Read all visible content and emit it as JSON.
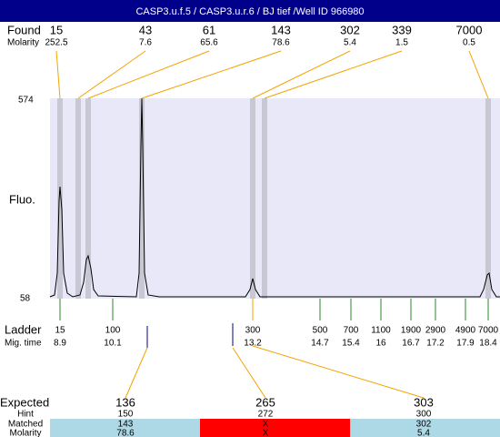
{
  "header": {
    "title": "CASP3.u.f.5 / CASP3.u.r.6 / BJ tief /Well ID 966980"
  },
  "found": {
    "label": "Found",
    "molarity_label": "Molarity",
    "peaks": [
      {
        "size": "15",
        "molarity": "252.5"
      },
      {
        "size": "43",
        "molarity": "7.6"
      },
      {
        "size": "61",
        "molarity": "65.6"
      },
      {
        "size": "143",
        "molarity": "78.6"
      },
      {
        "size": "302",
        "molarity": "5.4"
      },
      {
        "size": "339",
        "molarity": "1.5"
      },
      {
        "size": "7000",
        "molarity": "0.5"
      }
    ]
  },
  "axis": {
    "label": "Fluo.",
    "top": "574",
    "bottom": "58"
  },
  "ladder": {
    "label": "Ladder",
    "time_label": "Mig. time",
    "bands": [
      {
        "size": "15",
        "time": "8.9"
      },
      {
        "size": "100",
        "time": "10.1"
      },
      {
        "size": "300",
        "time": "13.2"
      },
      {
        "size": "500",
        "time": "14.7"
      },
      {
        "size": "700",
        "time": "15.4"
      },
      {
        "size": "1100",
        "time": "16"
      },
      {
        "size": "1900",
        "time": "16.7"
      },
      {
        "size": "2900",
        "time": "17.2"
      },
      {
        "size": "4900",
        "time": "17.9"
      },
      {
        "size": "7000",
        "time": "18.4"
      }
    ]
  },
  "expected": {
    "label": "Expected",
    "hint_label": "Hint",
    "matched_label": "Matched",
    "molarity_label": "Molarity",
    "columns": [
      {
        "expected": "136",
        "hint": "150",
        "matched": "143",
        "molarity": "78.6"
      },
      {
        "expected": "265",
        "hint": "272",
        "matched": "X",
        "molarity": "X"
      },
      {
        "expected": "303",
        "hint": "300",
        "matched": "302",
        "molarity": "5.4"
      }
    ]
  }
}
